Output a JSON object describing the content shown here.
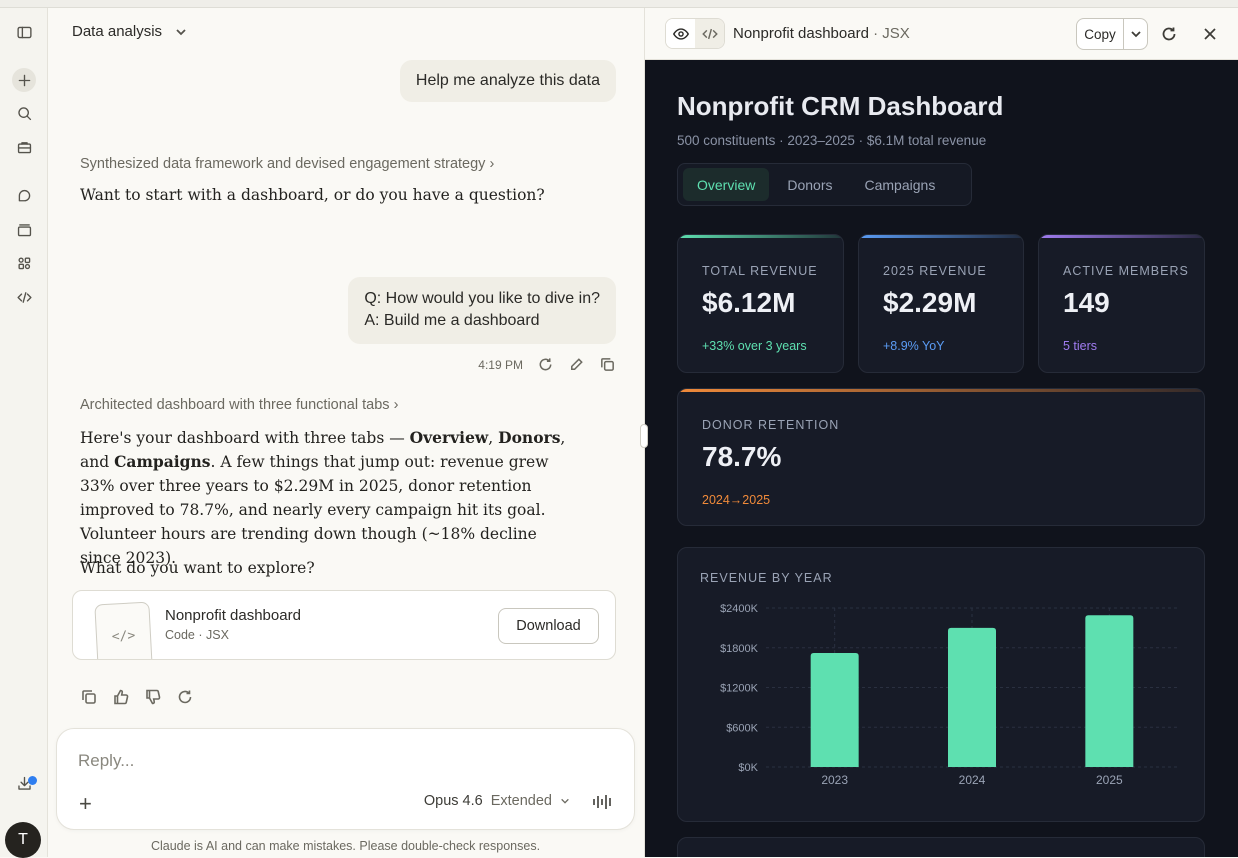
{
  "chat": {
    "title": "Data analysis",
    "user_msg_1": "Help me analyze this data",
    "thinking_1": "Synthesized data framework and devised engagement strategy",
    "assistant_1": "Want to start with a dashboard, or do you have a question?",
    "user_msg_2_q": "Q: How would you like to dive in?",
    "user_msg_2_a": "A: Build me a dashboard",
    "timestamp": "4:19 PM",
    "thinking_2": "Architected dashboard with three functional tabs",
    "resp_a": "Here's your dashboard with three tabs — ",
    "resp_b1": "Overview",
    "resp_c": ", ",
    "resp_b2": "Donors",
    "resp_d": ", and ",
    "resp_b3": "Campaigns",
    "resp_e": ". A few things that jump out: revenue grew 33% over three years to $2.29M in 2025, donor retention improved to 78.7%, and nearly every campaign hit its goal. Volunteer hours are trending down though (~18% decline since 2023).",
    "explore": "What do you want to explore?",
    "artifact": {
      "title": "Nonprofit dashboard",
      "subtitle": "Code · JSX",
      "download": "Download",
      "thumb": "</>"
    },
    "composer": {
      "placeholder": "Reply...",
      "plus": "+",
      "model": "Opus 4.6",
      "mode": "Extended"
    },
    "disclaimer": "Claude is AI and can make mistakes. Please double-check responses."
  },
  "sidebar": {
    "avatar_letter": "T"
  },
  "panel": {
    "title": "Nonprofit dashboard",
    "type": "· JSX",
    "copy": "Copy"
  },
  "dashboard": {
    "title": "Nonprofit CRM Dashboard",
    "subtitle": "500 constituents · 2023–2025 · $6.1M total revenue",
    "tabs": [
      "Overview",
      "Donors",
      "Campaigns"
    ],
    "kpis": [
      {
        "label": "TOTAL REVENUE",
        "value": "$6.12M",
        "sub": "+33% over 3 years",
        "color": "#5ee0b0"
      },
      {
        "label": "2025 REVENUE",
        "value": "$2.29M",
        "sub": "+8.9% YoY",
        "color": "#5b9cf5"
      },
      {
        "label": "ACTIVE MEMBERS",
        "value": "149",
        "sub": "5 tiers",
        "color": "#a07cf0"
      },
      {
        "label": "DONOR RETENTION",
        "value": "78.7%",
        "sub": "2024→2025",
        "color": "#f08a3a"
      }
    ]
  },
  "chart_data": {
    "type": "bar",
    "title": "REVENUE BY YEAR",
    "categories": [
      "2023",
      "2024",
      "2025"
    ],
    "values": [
      1720,
      2100,
      2290
    ],
    "ylim": [
      0,
      2400
    ],
    "yticks": [
      "$0K",
      "$600K",
      "$1200K",
      "$1800K",
      "$2400K"
    ],
    "ytick_values": [
      0,
      600,
      1200,
      1800,
      2400
    ],
    "bar_color": "#5ee0b0",
    "grid": true
  }
}
